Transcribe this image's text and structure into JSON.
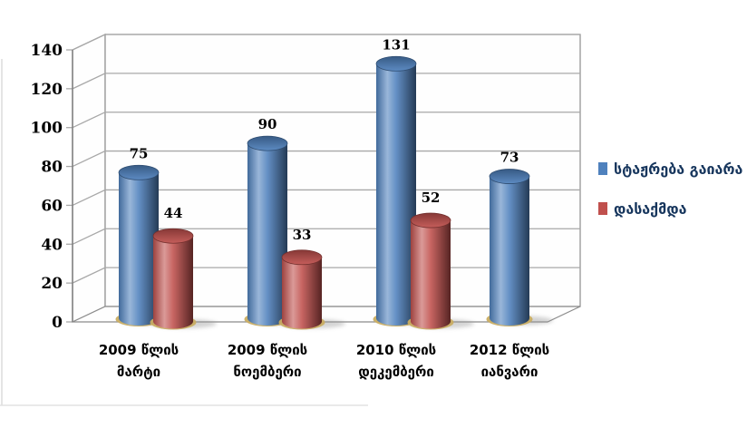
{
  "chart_data": {
    "type": "bar",
    "style": "3d-cylinder",
    "title": "",
    "xlabel": "",
    "ylabel": "",
    "categories": [
      {
        "label": "2009 წლის მარტი",
        "lines": [
          "2009 წლის",
          "მარტი"
        ]
      },
      {
        "label": "2009 წლის ნოემბერი",
        "lines": [
          "2009 წლის",
          "ნოემბერი"
        ]
      },
      {
        "label": "2010 წლის დეკემბერი",
        "lines": [
          "2010 წლის",
          "დეკემბერი"
        ]
      },
      {
        "label": "2012 წლის იანვარი",
        "lines": [
          "2012 წლის",
          "იანვარი"
        ]
      }
    ],
    "series": [
      {
        "name": "სტაჟრება გაიარა",
        "color": "#4f81bd",
        "values": [
          75,
          90,
          131,
          73
        ]
      },
      {
        "name": "დასაქმდა",
        "color": "#c0504d",
        "values": [
          44,
          33,
          52,
          null
        ]
      }
    ],
    "data_labels": [
      [
        "75",
        "90",
        "131",
        "73"
      ],
      [
        "44",
        "33",
        "52",
        null
      ]
    ],
    "show_data_labels": true,
    "ylim": [
      0,
      140
    ],
    "ytick_step": 20,
    "ytick_labels": [
      "0",
      "20",
      "40",
      "60",
      "80",
      "100",
      "120",
      "140"
    ],
    "grid": true,
    "legend_position": "right"
  },
  "colors": {
    "series_blue": "#4f81bd",
    "series_red": "#c0504d",
    "legend_text": "#17365d",
    "axis_text": "#000000",
    "gridline": "#a8a8a8",
    "wall_border": "#8c8c8c",
    "axis_line": "#7f7f7f",
    "base_ring": "#c9ad62",
    "shadow": "#909090",
    "background": "#ffffff"
  }
}
